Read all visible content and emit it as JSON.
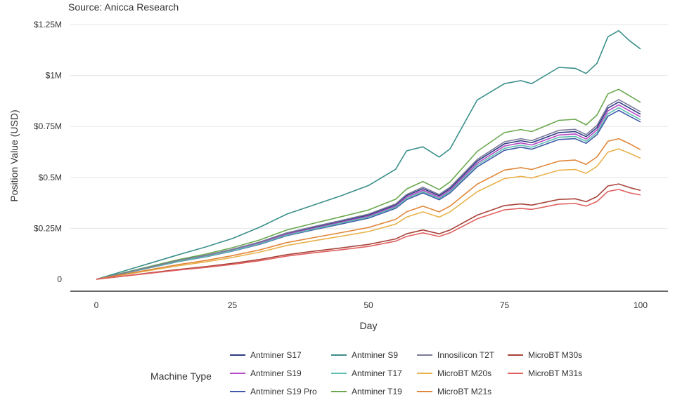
{
  "chart_data": {
    "type": "line",
    "subtitle": "Source: Anicca Research",
    "xlabel": "Day",
    "ylabel": "Position Value (USD)",
    "xlim": [
      0,
      100
    ],
    "ylim": [
      0,
      1250000
    ],
    "x_ticks": [
      {
        "value": 0,
        "label": "0"
      },
      {
        "value": 25,
        "label": "25"
      },
      {
        "value": 50,
        "label": "50"
      },
      {
        "value": 75,
        "label": "75"
      },
      {
        "value": 100,
        "label": "100"
      }
    ],
    "y_ticks": [
      {
        "value": 0,
        "label": "0"
      },
      {
        "value": 250000,
        "label": "$0.25M"
      },
      {
        "value": 500000,
        "label": "$0.5M"
      },
      {
        "value": 750000,
        "label": "$0.75M"
      },
      {
        "value": 1000000,
        "label": "$1M"
      },
      {
        "value": 1250000,
        "label": "$1.25M"
      }
    ],
    "grid": true,
    "legend": {
      "title": "Machine Type",
      "placement": "bottom"
    },
    "x": [
      0,
      5,
      10,
      15,
      20,
      25,
      30,
      35,
      40,
      45,
      50,
      55,
      57,
      60,
      63,
      65,
      70,
      75,
      78,
      80,
      85,
      88,
      90,
      92,
      94,
      96,
      98,
      100
    ],
    "series": [
      {
        "name": "Antminer S17",
        "color": "#2e3c82",
        "values": [
          0,
          30000,
          60000,
          90000,
          115000,
          145000,
          180000,
          225000,
          255000,
          285000,
          315000,
          365000,
          410000,
          445000,
          410000,
          445000,
          580000,
          665000,
          680000,
          670000,
          720000,
          725000,
          700000,
          745000,
          840000,
          870000,
          840000,
          810000
        ]
      },
      {
        "name": "Antminer S19",
        "color": "#b548c6",
        "values": [
          0,
          29500,
          59000,
          88500,
          113000,
          142500,
          177000,
          221000,
          251000,
          280000,
          310000,
          359000,
          403000,
          437000,
          403000,
          437000,
          570000,
          654000,
          669000,
          659000,
          708000,
          713000,
          688000,
          733000,
          826000,
          856000,
          826000,
          797000
        ]
      },
      {
        "name": "Antminer S19 Pro",
        "color": "#3f5aa8",
        "values": [
          0,
          28500,
          57000,
          86000,
          109500,
          138000,
          171500,
          214000,
          243000,
          271500,
          300000,
          348000,
          390000,
          424000,
          390000,
          424000,
          552000,
          633000,
          648000,
          638000,
          686000,
          690000,
          667000,
          710000,
          800000,
          829000,
          800000,
          772000
        ]
      },
      {
        "name": "Antminer S9",
        "color": "#3a8f8a",
        "values": [
          0,
          40000,
          80000,
          120000,
          158000,
          200000,
          255000,
          320000,
          365000,
          410000,
          460000,
          540000,
          630000,
          650000,
          600000,
          640000,
          880000,
          960000,
          975000,
          960000,
          1040000,
          1035000,
          1010000,
          1060000,
          1190000,
          1220000,
          1170000,
          1130000
        ]
      },
      {
        "name": "Antminer T17",
        "color": "#5fbfb0",
        "values": [
          0,
          29000,
          58000,
          87000,
          111000,
          140000,
          174000,
          217000,
          247000,
          276000,
          305000,
          354000,
          396000,
          430000,
          396000,
          430000,
          561000,
          643000,
          658000,
          648000,
          697000,
          701000,
          677000,
          721000,
          812000,
          842000,
          812000,
          783000
        ]
      },
      {
        "name": "Antminer T19",
        "color": "#6aa84f",
        "values": [
          0,
          32000,
          64000,
          96000,
          123000,
          155000,
          193000,
          242000,
          275000,
          307000,
          340000,
          393000,
          443000,
          480000,
          440000,
          478000,
          628000,
          720000,
          735000,
          725000,
          780000,
          785000,
          758000,
          806000,
          910000,
          932000,
          900000,
          868000
        ]
      },
      {
        "name": "Innosilicon T2T",
        "color": "#7a7a9a",
        "values": [
          0,
          30500,
          61000,
          91500,
          117000,
          147000,
          183000,
          228000,
          259000,
          289000,
          320000,
          370000,
          416000,
          452000,
          416000,
          452000,
          588000,
          675000,
          690000,
          680000,
          731000,
          736000,
          710000,
          756000,
          852000,
          882000,
          852000,
          822000
        ]
      },
      {
        "name": "MicroBT M20s",
        "color": "#e8b24a",
        "values": [
          0,
          22000,
          44000,
          66000,
          85000,
          107000,
          133000,
          166000,
          189000,
          211000,
          234000,
          271000,
          305000,
          331000,
          305000,
          331000,
          430000,
          494000,
          505000,
          497000,
          535000,
          539000,
          520000,
          554000,
          624000,
          640000,
          618000,
          594000
        ]
      },
      {
        "name": "MicroBT M21s",
        "color": "#e0873a",
        "values": [
          0,
          24000,
          48000,
          72000,
          92000,
          116000,
          144000,
          180000,
          205000,
          229000,
          254000,
          294000,
          331000,
          359000,
          331000,
          359000,
          467000,
          536000,
          548000,
          539000,
          580000,
          585000,
          564000,
          601000,
          677000,
          690000,
          665000,
          636000
        ]
      },
      {
        "name": "MicroBT M30s",
        "color": "#a8433a",
        "values": [
          0,
          16000,
          32000,
          48000,
          62000,
          78000,
          97000,
          121000,
          138000,
          154000,
          171000,
          198000,
          223000,
          242000,
          223000,
          242000,
          315000,
          362000,
          370000,
          364000,
          392000,
          395000,
          381000,
          406000,
          458000,
          468000,
          450000,
          436000
        ]
      },
      {
        "name": "MicroBT M31s",
        "color": "#e06060",
        "values": [
          0,
          15000,
          30000,
          45000,
          58000,
          73000,
          91000,
          114000,
          130000,
          145000,
          161000,
          187000,
          210000,
          228000,
          210000,
          228000,
          297000,
          341000,
          348000,
          343000,
          369000,
          372000,
          359000,
          382000,
          431000,
          441000,
          424000,
          414000
        ]
      }
    ]
  }
}
